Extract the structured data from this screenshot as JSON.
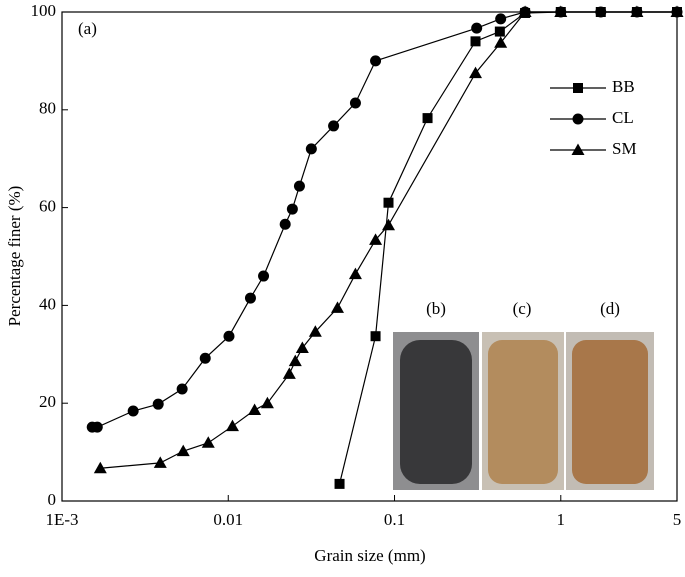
{
  "chart_data": {
    "type": "line",
    "xlabel": "Grain size (mm)",
    "ylabel": "Percentage  finer (%)",
    "annotations": [
      "(a)",
      "(b)",
      "(c)",
      "(d)"
    ],
    "xscale": "log",
    "xlim": [
      0.001,
      5
    ],
    "xticks": [
      {
        "value": 0.001,
        "label": "1E-3"
      },
      0.01,
      0.1,
      1,
      5
    ],
    "ylim": [
      0,
      100
    ],
    "yticks": [
      0,
      20,
      40,
      60,
      80,
      100
    ],
    "legend": "upper right",
    "series": [
      {
        "name": "BB",
        "color": "#000000",
        "marker": "square",
        "x": [
          0.0467,
          0.0769,
          0.092,
          0.158,
          0.307,
          0.43,
          0.61,
          1,
          1.74,
          2.87,
          5
        ],
        "values": [
          3.5,
          33.7,
          61,
          78.3,
          94,
          96,
          99.8,
          100,
          100,
          100,
          100
        ]
      },
      {
        "name": "CL",
        "color": "#000000",
        "marker": "circle",
        "x": [
          0.00152,
          0.00163,
          0.00268,
          0.00379,
          0.00528,
          0.00727,
          0.0101,
          0.0136,
          0.0163,
          0.022,
          0.0243,
          0.0268,
          0.0316,
          0.043,
          0.0582,
          0.0769,
          0.312,
          0.435,
          0.61,
          1,
          1.74,
          2.87,
          5
        ],
        "values": [
          15.1,
          15.1,
          18.4,
          19.8,
          22.9,
          29.2,
          33.7,
          41.5,
          46,
          56.6,
          59.7,
          64.4,
          72,
          76.7,
          81.4,
          90,
          96.7,
          98.6,
          100,
          100,
          100,
          100,
          100
        ]
      },
      {
        "name": "SM",
        "color": "#000000",
        "marker": "triangle",
        "x": [
          0.0017,
          0.0039,
          0.00536,
          0.00758,
          0.0106,
          0.0144,
          0.0172,
          0.0233,
          0.0253,
          0.0279,
          0.0334,
          0.0454,
          0.0582,
          0.0769,
          0.092,
          0.307,
          0.435,
          0.61,
          1,
          2.87,
          5
        ],
        "values": [
          6.7,
          7.8,
          10.2,
          11.9,
          15.3,
          18.6,
          20,
          26,
          28.6,
          31.3,
          34.6,
          39.5,
          46.4,
          53.4,
          56.4,
          87.5,
          93.7,
          100,
          100,
          100,
          100
        ]
      }
    ]
  }
}
